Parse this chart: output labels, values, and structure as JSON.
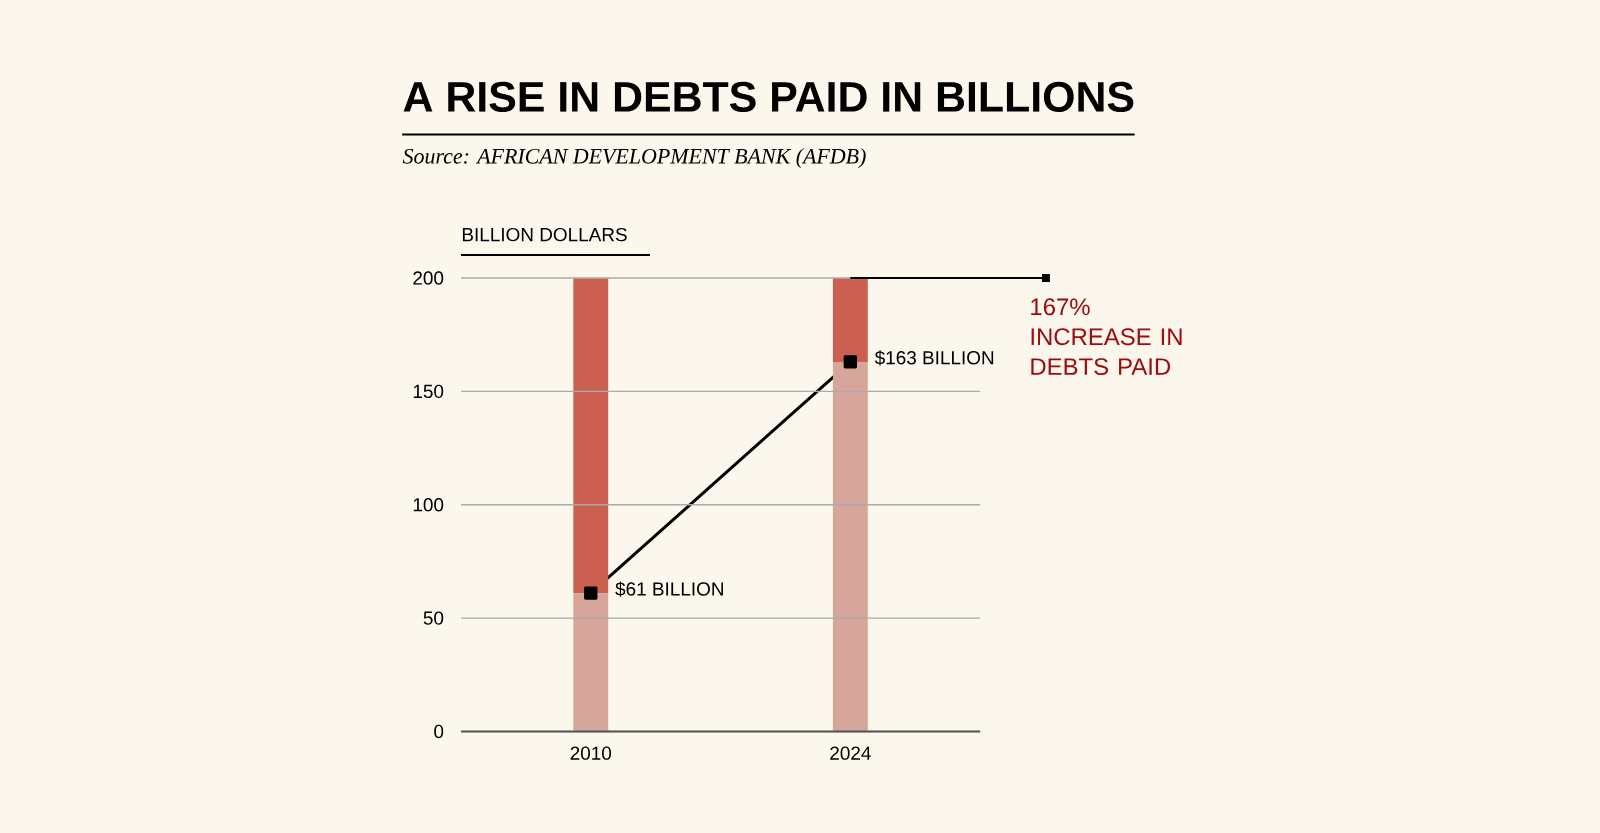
{
  "chart_data": {
    "type": "bar",
    "title": "A RISE IN DEBTS PAID IN BILLIONS",
    "ylabel": "BILLION DOLLARS",
    "categories": [
      "2010",
      "2024"
    ],
    "stacked": true,
    "series": [
      {
        "color": "#d6a69b",
        "values": [
          61,
          163
        ]
      },
      {
        "color": "#cc6050",
        "values": [
          139,
          37
        ]
      },
      {
        "type": "line",
        "color": "#000000",
        "values": [
          61,
          163
        ],
        "value_labels": [
          "$61 BILLION",
          "$163 BILLION"
        ]
      }
    ],
    "ylim": [
      0,
      200
    ],
    "yticks": [
      0,
      50,
      100,
      150,
      200
    ],
    "grid": "y",
    "marker": "square",
    "annotations": [
      "Source: AFRICAN DEVELOPMENT BANK (AFDB)",
      {
        "text": "167% INCREASE IN DEBTS PAID",
        "x": "2024",
        "y": 200
      }
    ]
  }
}
